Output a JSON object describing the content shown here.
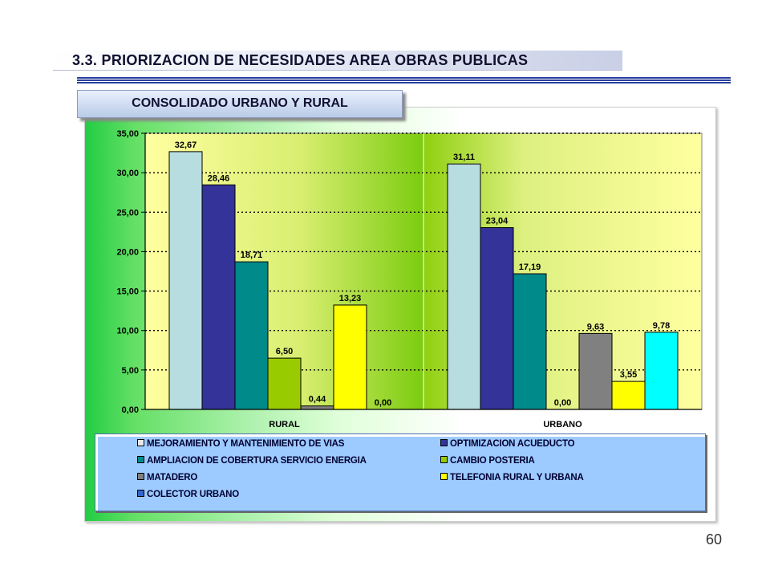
{
  "header": {
    "title": "3.3. PRIORIZACION DE NECESIDADES AREA  OBRAS PUBLICAS",
    "subtitle": "CONSOLIDADO URBANO Y RURAL"
  },
  "page_number": "60",
  "chart_data": {
    "type": "bar",
    "title": "",
    "xlabel": "",
    "ylabel": "",
    "ylim": [
      0,
      35
    ],
    "yticks": [
      "0,00",
      "5,00",
      "10,00",
      "15,00",
      "20,00",
      "25,00",
      "30,00",
      "35,00"
    ],
    "grid": "dotted horizontal",
    "categories": [
      "RURAL",
      "URBANO"
    ],
    "legend_position": "bottom",
    "series": [
      {
        "name": "MEJORAMIENTO Y MANTENIMIENTO DE VIAS",
        "color": "#b8dde0",
        "values": [
          32.67,
          31.11
        ],
        "labels": [
          "32,67",
          "31,11"
        ]
      },
      {
        "name": "OPTIMIZACION ACUEDUCTO",
        "color": "#333399",
        "values": [
          28.46,
          23.04
        ],
        "labels": [
          "28,46",
          "23,04"
        ]
      },
      {
        "name": "AMPLIACION DE COBERTURA SERVICIO ENERGIA",
        "color": "#008a8a",
        "values": [
          18.71,
          17.19
        ],
        "labels": [
          "18,71",
          "17,19"
        ]
      },
      {
        "name": "CAMBIO POSTERIA",
        "color": "#99cc00",
        "values": [
          6.5,
          0.0
        ],
        "labels": [
          "6,50",
          "0,00"
        ]
      },
      {
        "name": "MATADERO",
        "color": "#808080",
        "values": [
          0.44,
          9.63
        ],
        "labels": [
          "0,44",
          "9,63"
        ]
      },
      {
        "name": "TELEFONIA RURAL Y URBANA",
        "color": "#ffff00",
        "values": [
          13.23,
          3.55
        ],
        "labels": [
          "13,23",
          "3,55"
        ]
      },
      {
        "name": "COLECTOR URBANO",
        "color": "#00ffff",
        "values": [
          0.0,
          9.78
        ],
        "labels": [
          "0,00",
          "9,78"
        ]
      }
    ],
    "legend_swatch_colors": [
      "#e8e8e8",
      "#333399",
      "#008a8a",
      "#99cc00",
      "#808080",
      "#ffff00",
      "#3366cc"
    ]
  }
}
